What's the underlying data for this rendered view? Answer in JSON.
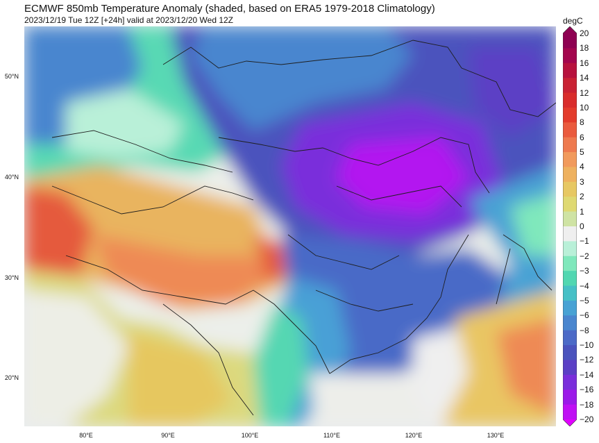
{
  "header": {
    "title": "ECMWF 850mb Temperature Anomaly (shaded, based on ERA5 1979-2018 Climatology)",
    "subtitle": "2023/12/19 Tue 12Z [+24h] valid at 2023/12/20 Wed 12Z"
  },
  "map": {
    "lat_labels": [
      "50°N",
      "40°N",
      "30°N",
      "20°N"
    ],
    "lon_labels": [
      "80°E",
      "90°E",
      "100°E",
      "110°E",
      "120°E",
      "130°E"
    ]
  },
  "colorbar": {
    "unit": "degC",
    "levels": [
      "20",
      "18",
      "16",
      "14",
      "12",
      "10",
      "8",
      "6",
      "5",
      "4",
      "3",
      "2",
      "1",
      "0",
      "−1",
      "−2",
      "−3",
      "−4",
      "−5",
      "−6",
      "−8",
      "−10",
      "−12",
      "−14",
      "−16",
      "−18",
      "−20"
    ],
    "colors": [
      "#8e0152",
      "#a3064e",
      "#b7123e",
      "#c92234",
      "#d92d2c",
      "#e33c2c",
      "#ea5b3e",
      "#ee7a4f",
      "#f19a5c",
      "#eeb15f",
      "#e7c863",
      "#dfd972",
      "#cfe3a4",
      "#efefef",
      "#b9f0d8",
      "#7fe8bc",
      "#51d7b1",
      "#46c0c6",
      "#48a2d4",
      "#4a86cf",
      "#4c6ac7",
      "#4b53bd",
      "#5b3fc5",
      "#7a2edb",
      "#9b1ae8",
      "#bf10f4",
      "#e000ff"
    ]
  }
}
